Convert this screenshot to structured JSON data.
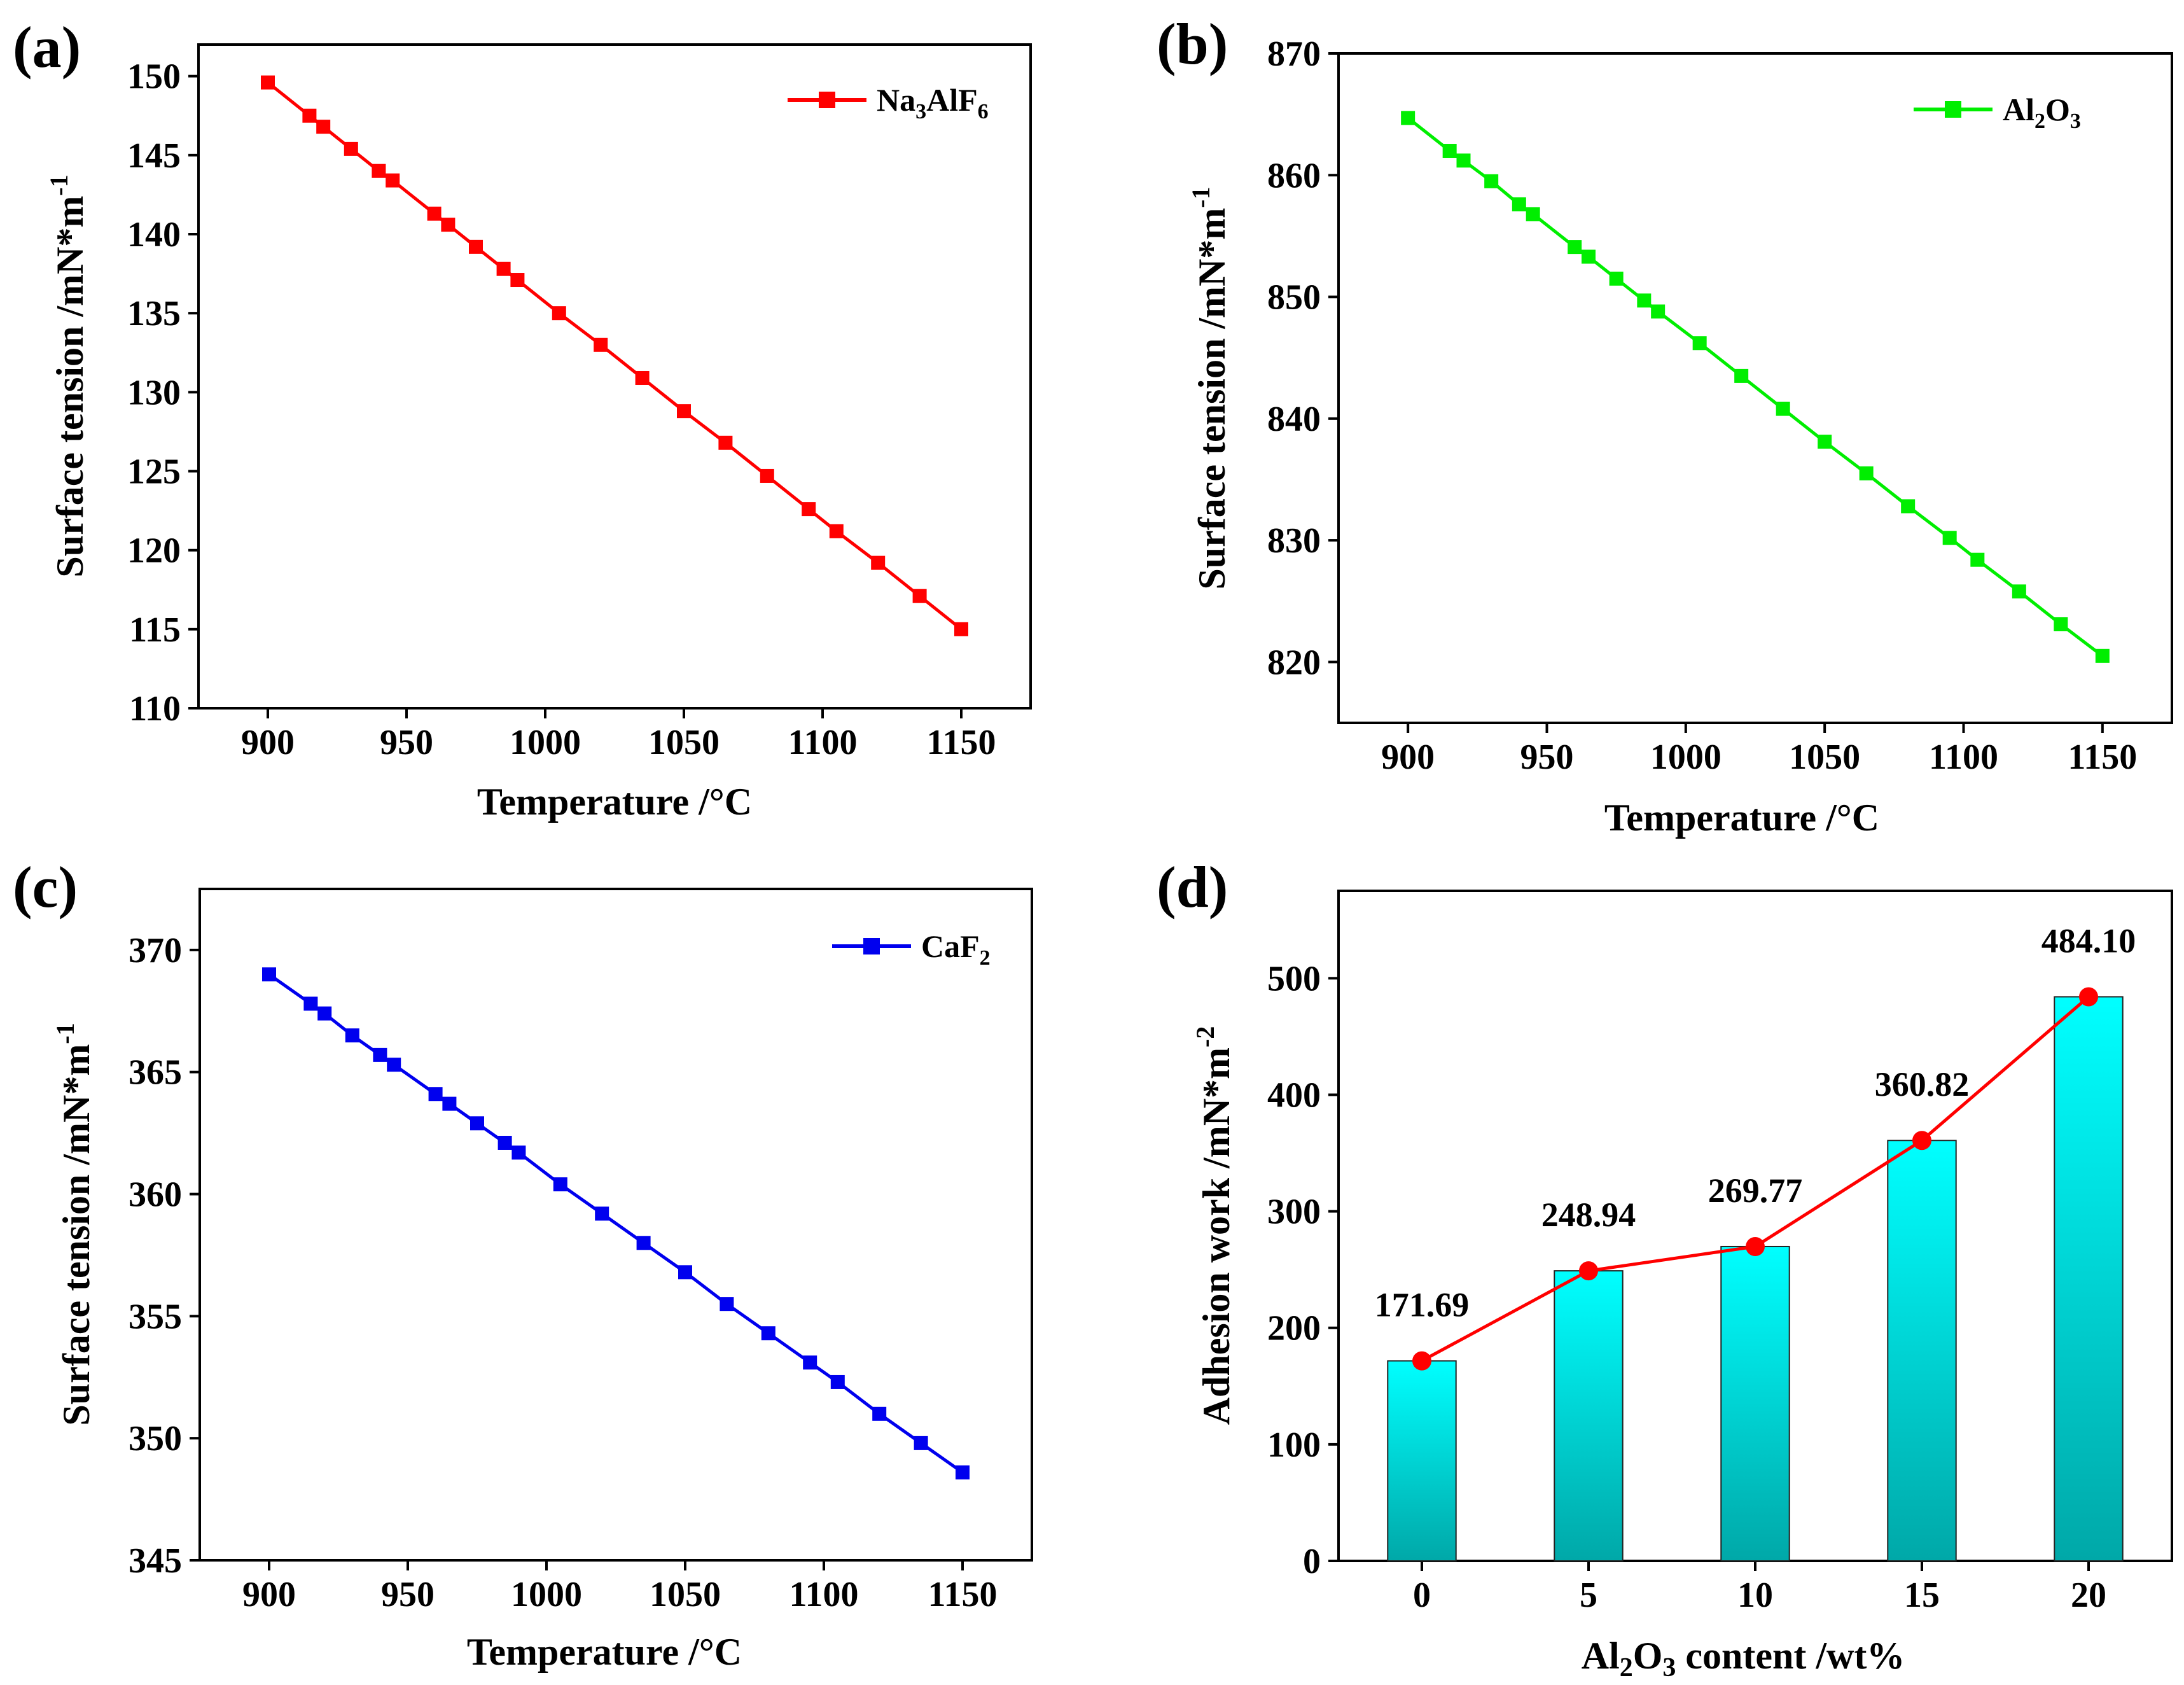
{
  "chart_data": [
    {
      "id": "a",
      "panel_label": "(a)",
      "type": "line",
      "xlabel": "Temperature /°C",
      "ylabel": "Surface tension /mN*m",
      "ylabel_sup": "-1",
      "xlim": [
        875,
        1175
      ],
      "ylim": [
        110,
        152
      ],
      "xticks": [
        900,
        950,
        1000,
        1050,
        1100,
        1150
      ],
      "yticks": [
        110,
        115,
        120,
        125,
        130,
        135,
        140,
        145,
        150
      ],
      "legend_position": "top-right",
      "grid": false,
      "series": [
        {
          "name": "Na3AlF6",
          "legend": {
            "pre": "Na",
            "sub1": "3",
            "mid": "AlF",
            "sub2": "6"
          },
          "color": "#ff0000",
          "x": [
            900,
            915,
            920,
            930,
            940,
            945,
            960,
            965,
            975,
            985,
            990,
            1005,
            1020,
            1035,
            1050,
            1065,
            1080,
            1095,
            1105,
            1120,
            1135,
            1150
          ],
          "y": [
            149.6,
            147.5,
            146.8,
            145.4,
            144.0,
            143.4,
            141.3,
            140.6,
            139.2,
            137.8,
            137.1,
            135.0,
            133.0,
            130.9,
            128.8,
            126.8,
            124.7,
            122.6,
            121.2,
            119.2,
            117.1,
            115.0
          ]
        }
      ]
    },
    {
      "id": "b",
      "panel_label": "(b)",
      "type": "line",
      "xlabel": "Temperature /°C",
      "ylabel": "Surface tension /mN*m",
      "ylabel_sup": "-1",
      "xlim": [
        875,
        1175
      ],
      "ylim": [
        815,
        870
      ],
      "xticks": [
        900,
        950,
        1000,
        1050,
        1100,
        1150
      ],
      "yticks": [
        820,
        830,
        840,
        850,
        860,
        870
      ],
      "legend_position": "top-right",
      "grid": false,
      "series": [
        {
          "name": "Al2O3",
          "legend": {
            "pre": "Al",
            "sub1": "2",
            "mid": "O",
            "sub2": "3"
          },
          "color": "#00ee00",
          "x": [
            900,
            915,
            920,
            930,
            940,
            945,
            960,
            965,
            975,
            985,
            990,
            1005,
            1020,
            1035,
            1050,
            1065,
            1080,
            1095,
            1105,
            1120,
            1135,
            1150
          ],
          "y": [
            864.7,
            862.0,
            861.2,
            859.5,
            857.6,
            856.8,
            854.1,
            853.3,
            851.5,
            849.7,
            848.8,
            846.2,
            843.5,
            840.8,
            838.1,
            835.5,
            832.8,
            830.2,
            828.4,
            825.8,
            823.1,
            820.5
          ]
        }
      ]
    },
    {
      "id": "c",
      "panel_label": "(c)",
      "type": "line",
      "xlabel": "Temperature /°C",
      "ylabel": "Surface tension /mN*m",
      "ylabel_sup": "-1",
      "xlim": [
        875,
        1175
      ],
      "ylim": [
        345,
        372.5
      ],
      "xticks": [
        900,
        950,
        1000,
        1050,
        1100,
        1150
      ],
      "yticks": [
        345,
        350,
        355,
        360,
        365,
        370
      ],
      "legend_position": "top-right",
      "grid": false,
      "series": [
        {
          "name": "CaF2",
          "legend": {
            "pre": "CaF",
            "sub1": "2",
            "mid": "",
            "sub2": ""
          },
          "color": "#0000ee",
          "x": [
            900,
            915,
            920,
            930,
            940,
            945,
            960,
            965,
            975,
            985,
            990,
            1005,
            1020,
            1035,
            1050,
            1065,
            1080,
            1095,
            1105,
            1120,
            1135,
            1150
          ],
          "y": [
            369.0,
            367.8,
            367.4,
            366.5,
            365.7,
            365.3,
            364.1,
            363.7,
            362.9,
            362.1,
            361.7,
            360.4,
            359.2,
            358.0,
            356.8,
            355.5,
            354.3,
            353.1,
            352.3,
            351.0,
            349.8,
            348.6
          ]
        }
      ]
    },
    {
      "id": "d",
      "panel_label": "(d)",
      "type": "bar",
      "xlabel_parts": {
        "pre": "Al",
        "sub1": "2",
        "mid": "O",
        "sub2": "3",
        "post": " content /wt%"
      },
      "ylabel": "Adhesion work /mN*m",
      "ylabel_sup": "-2",
      "ylim": [
        0,
        575
      ],
      "yticks": [
        0,
        100,
        200,
        300,
        400,
        500
      ],
      "categories": [
        "0",
        "5",
        "10",
        "15",
        "20"
      ],
      "values": [
        171.69,
        248.94,
        269.77,
        360.82,
        484.1
      ],
      "data_labels": [
        "171.69",
        "248.94",
        "269.77",
        "360.82",
        "484.10"
      ],
      "bar_colors": {
        "top": "#00ffff",
        "bottom": "#00a8a8",
        "edge": "#222222"
      },
      "line_color": "#ff0000",
      "grid": false
    }
  ]
}
